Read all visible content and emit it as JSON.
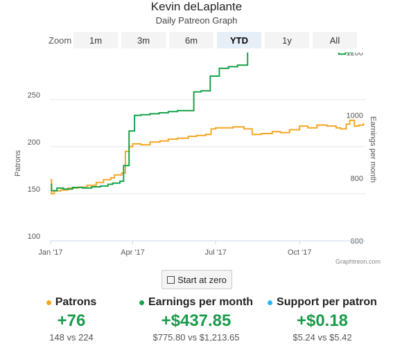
{
  "header": {
    "title": "Kevin deLaplante",
    "subtitle": "Daily Patreon Graph"
  },
  "zoom": {
    "label": "Zoom",
    "buttons": [
      {
        "label": "1m",
        "active": false
      },
      {
        "label": "3m",
        "active": false
      },
      {
        "label": "6m",
        "active": false
      },
      {
        "label": "YTD",
        "active": true
      },
      {
        "label": "1y",
        "active": false
      },
      {
        "label": "All",
        "active": false
      }
    ]
  },
  "chart_data": {
    "type": "line",
    "x_ticks": [
      "Jan '17",
      "Apr '17",
      "Jul '17",
      "Oct '17"
    ],
    "y_left": {
      "label": "Patrons",
      "ticks": [
        100,
        150,
        200,
        250
      ],
      "range": [
        100,
        300
      ]
    },
    "y_right": {
      "label": "Earnings per month",
      "ticks": [
        600,
        800,
        1000,
        1200
      ],
      "range": [
        600,
        1200
      ]
    },
    "grid": true,
    "credit": "Graphtreon.com",
    "series": [
      {
        "name": "Patrons",
        "axis": "left",
        "color": "#f5a623",
        "points": [
          [
            "2017-01-01",
            165
          ],
          [
            "2017-01-02",
            150
          ],
          [
            "2017-01-05",
            153
          ],
          [
            "2017-01-12",
            154
          ],
          [
            "2017-01-20",
            156
          ],
          [
            "2017-01-31",
            157
          ],
          [
            "2017-02-10",
            159
          ],
          [
            "2017-02-20",
            162
          ],
          [
            "2017-02-28",
            165
          ],
          [
            "2017-03-08",
            167
          ],
          [
            "2017-03-12",
            170
          ],
          [
            "2017-03-20",
            172
          ],
          [
            "2017-03-24",
            195
          ],
          [
            "2017-03-28",
            200
          ],
          [
            "2017-04-01",
            203
          ],
          [
            "2017-04-10",
            202
          ],
          [
            "2017-04-20",
            205
          ],
          [
            "2017-05-01",
            206
          ],
          [
            "2017-05-10",
            208
          ],
          [
            "2017-05-20",
            209
          ],
          [
            "2017-06-01",
            211
          ],
          [
            "2017-06-10",
            212
          ],
          [
            "2017-06-20",
            213
          ],
          [
            "2017-06-26",
            219
          ],
          [
            "2017-07-01",
            220
          ],
          [
            "2017-07-10",
            220
          ],
          [
            "2017-07-20",
            221
          ],
          [
            "2017-08-01",
            219
          ],
          [
            "2017-08-10",
            213
          ],
          [
            "2017-08-20",
            214
          ],
          [
            "2017-09-01",
            216
          ],
          [
            "2017-09-10",
            215
          ],
          [
            "2017-09-20",
            218
          ],
          [
            "2017-10-01",
            222
          ],
          [
            "2017-10-10",
            220
          ],
          [
            "2017-10-20",
            223
          ],
          [
            "2017-10-31",
            222
          ],
          [
            "2017-11-10",
            220
          ],
          [
            "2017-11-15",
            219
          ],
          [
            "2017-11-21",
            224
          ],
          [
            "2017-11-25",
            228
          ],
          [
            "2017-11-30",
            222
          ],
          [
            "2017-12-05",
            223
          ],
          [
            "2017-12-10",
            225
          ]
        ]
      },
      {
        "name": "Earnings per month",
        "axis": "right",
        "color": "#16a34a",
        "points": [
          [
            "2017-01-01",
            780
          ],
          [
            "2017-01-02",
            760
          ],
          [
            "2017-01-08",
            768
          ],
          [
            "2017-01-15",
            765
          ],
          [
            "2017-01-25",
            770
          ],
          [
            "2017-02-05",
            768
          ],
          [
            "2017-02-15",
            772
          ],
          [
            "2017-02-25",
            775
          ],
          [
            "2017-03-05",
            780
          ],
          [
            "2017-03-10",
            784
          ],
          [
            "2017-03-18",
            790
          ],
          [
            "2017-03-22",
            840
          ],
          [
            "2017-03-28",
            950
          ],
          [
            "2017-04-03",
            1000
          ],
          [
            "2017-04-10",
            1002
          ],
          [
            "2017-04-20",
            1005
          ],
          [
            "2017-04-30",
            1008
          ],
          [
            "2017-05-10",
            1012
          ],
          [
            "2017-05-20",
            1015
          ],
          [
            "2017-06-01",
            1015
          ],
          [
            "2017-06-07",
            1075
          ],
          [
            "2017-06-15",
            1078
          ],
          [
            "2017-06-25",
            1125
          ],
          [
            "2017-07-05",
            1150
          ],
          [
            "2017-07-15",
            1155
          ],
          [
            "2017-07-25",
            1160
          ],
          [
            "2017-08-01",
            1160
          ],
          [
            "2017-08-05",
            1225
          ],
          [
            "2017-08-15",
            1222
          ],
          [
            "2017-08-25",
            1215
          ],
          [
            "2017-09-01",
            1225
          ],
          [
            "2017-09-10",
            1230
          ],
          [
            "2017-09-20",
            1235
          ],
          [
            "2017-10-01",
            1240
          ],
          [
            "2017-10-10",
            1242
          ],
          [
            "2017-10-20",
            1245
          ],
          [
            "2017-10-31",
            1235
          ],
          [
            "2017-11-05",
            1245
          ],
          [
            "2017-11-10",
            1252
          ],
          [
            "2017-11-13",
            1195
          ],
          [
            "2017-11-20",
            1200
          ],
          [
            "2017-11-28",
            1230
          ],
          [
            "2017-12-03",
            1232
          ],
          [
            "2017-12-06",
            1210
          ],
          [
            "2017-12-10",
            1208
          ]
        ]
      }
    ]
  },
  "zero_button": {
    "label": "Start at zero"
  },
  "stats": [
    {
      "name": "Patrons",
      "dot_color": "#f5a623",
      "value": "+76",
      "compare": "148 vs 224"
    },
    {
      "name": "Earnings per month",
      "dot_color": "#16a34a",
      "value": "+$437.85",
      "compare": "$775.80 vs $1,213.65"
    },
    {
      "name": "Support per patron",
      "dot_color": "#29b6f6",
      "value": "+$0.18",
      "compare": "$5.24 vs $5.42"
    }
  ]
}
